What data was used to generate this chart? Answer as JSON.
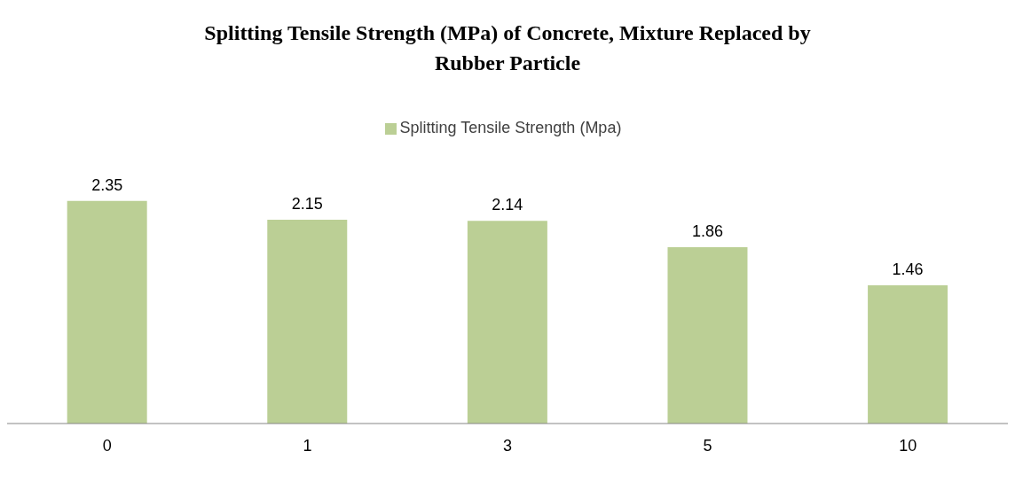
{
  "chart_data": {
    "type": "bar",
    "title": "Splitting Tensile Strength (MPa) of Concrete, Mixture Replaced by Rubber Particle",
    "categories": [
      "0",
      "1",
      "3",
      "5",
      "10"
    ],
    "series": [
      {
        "name": "Splitting Tensile Strength (Mpa)",
        "color": "#bbcf95",
        "values": [
          2.35,
          2.15,
          2.14,
          1.86,
          1.46
        ]
      }
    ],
    "data_labels": true,
    "legend": "top"
  }
}
